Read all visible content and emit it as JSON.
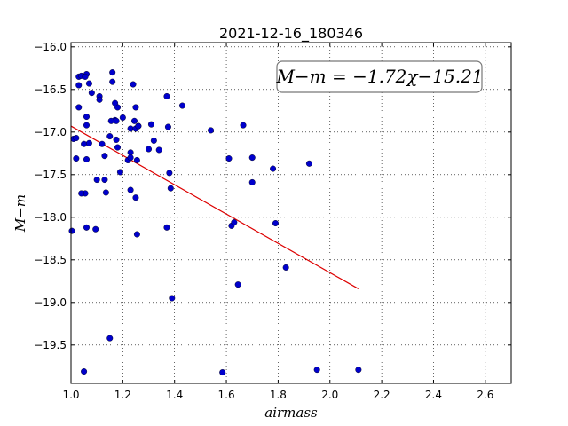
{
  "chart_data": {
    "type": "scatter",
    "title": "2021-12-16_180346",
    "xlabel": "airmass",
    "ylabel": "M−m",
    "xlim": [
      1.0,
      2.7
    ],
    "ylim": [
      -19.95,
      -15.95
    ],
    "y_inverted": true,
    "grid": true,
    "xticks": [
      1.0,
      1.2,
      1.4,
      1.6,
      1.8,
      2.0,
      2.2,
      2.4,
      2.6
    ],
    "xtick_labels": [
      "1.0",
      "1.2",
      "1.4",
      "1.6",
      "1.8",
      "2.0",
      "2.2",
      "2.4",
      "2.6"
    ],
    "yticks": [
      -16.0,
      -16.5,
      -17.0,
      -17.5,
      -18.0,
      -18.5,
      -19.0,
      -19.5
    ],
    "ytick_labels": [
      "−16.0",
      "−16.5",
      "−17.0",
      "−17.5",
      "−18.0",
      "−18.5",
      "−19.0",
      "−19.5"
    ],
    "annotation": "M−m = −1.72χ−15.21",
    "annotation_position": "top-right",
    "point_color": "#0000cc",
    "fit_line_color": "#dd0000",
    "series": [
      {
        "kind": "points",
        "x": [
          1.0,
          1.01,
          1.02,
          1.03,
          1.03,
          1.04,
          1.05,
          1.06,
          1.07,
          1.08,
          1.03,
          1.06,
          1.06,
          1.07,
          1.055,
          1.06,
          1.02,
          1.06,
          1.04,
          1.055,
          1.1,
          1.12,
          1.11,
          1.095,
          1.11,
          1.13,
          1.135,
          1.13,
          1.15,
          1.16,
          1.16,
          1.17,
          1.175,
          1.18,
          1.17,
          1.175,
          1.18,
          1.155,
          1.19,
          1.2,
          1.22,
          1.23,
          1.23,
          1.24,
          1.245,
          1.25,
          1.255,
          1.26,
          1.25,
          1.23,
          1.23,
          1.25,
          1.26,
          1.255,
          1.3,
          1.31,
          1.32,
          1.34,
          1.375,
          1.38,
          1.385,
          1.43,
          1.37,
          1.37,
          1.39,
          1.54,
          1.61,
          1.62,
          1.63,
          1.645,
          1.665,
          1.7,
          1.7,
          1.78,
          1.79,
          1.83,
          1.92,
          1.95,
          2.11,
          1.585,
          1.15,
          1.05
        ],
        "y": [
          -18.16,
          -17.08,
          -17.31,
          -16.45,
          -16.35,
          -16.34,
          -17.14,
          -16.32,
          -16.43,
          -16.54,
          -16.71,
          -16.82,
          -16.92,
          -17.13,
          -17.72,
          -17.32,
          -17.07,
          -18.12,
          -17.72,
          -16.35,
          -17.56,
          -17.14,
          -16.58,
          -18.14,
          -16.62,
          -17.56,
          -17.71,
          -17.28,
          -17.05,
          -16.3,
          -16.41,
          -16.86,
          -16.87,
          -16.71,
          -16.66,
          -17.09,
          -17.18,
          -16.87,
          -17.47,
          -16.83,
          -17.33,
          -17.24,
          -17.68,
          -16.44,
          -16.87,
          -16.71,
          -17.33,
          -16.93,
          -17.77,
          -17.3,
          -16.96,
          -16.96,
          -16.93,
          -18.2,
          -17.2,
          -16.91,
          -17.1,
          -17.21,
          -16.94,
          -17.48,
          -17.66,
          -16.69,
          -16.58,
          -18.12,
          -18.95,
          -16.98,
          -17.31,
          -18.1,
          -18.06,
          -18.79,
          -16.92,
          -17.3,
          -17.59,
          -17.43,
          -18.07,
          -18.59,
          -17.37,
          -19.79,
          -19.79,
          -19.82,
          -19.42,
          -19.81
        ]
      },
      {
        "kind": "fit_line",
        "x": [
          1.0,
          2.11
        ],
        "y": [
          -16.93,
          -18.84
        ]
      }
    ]
  }
}
